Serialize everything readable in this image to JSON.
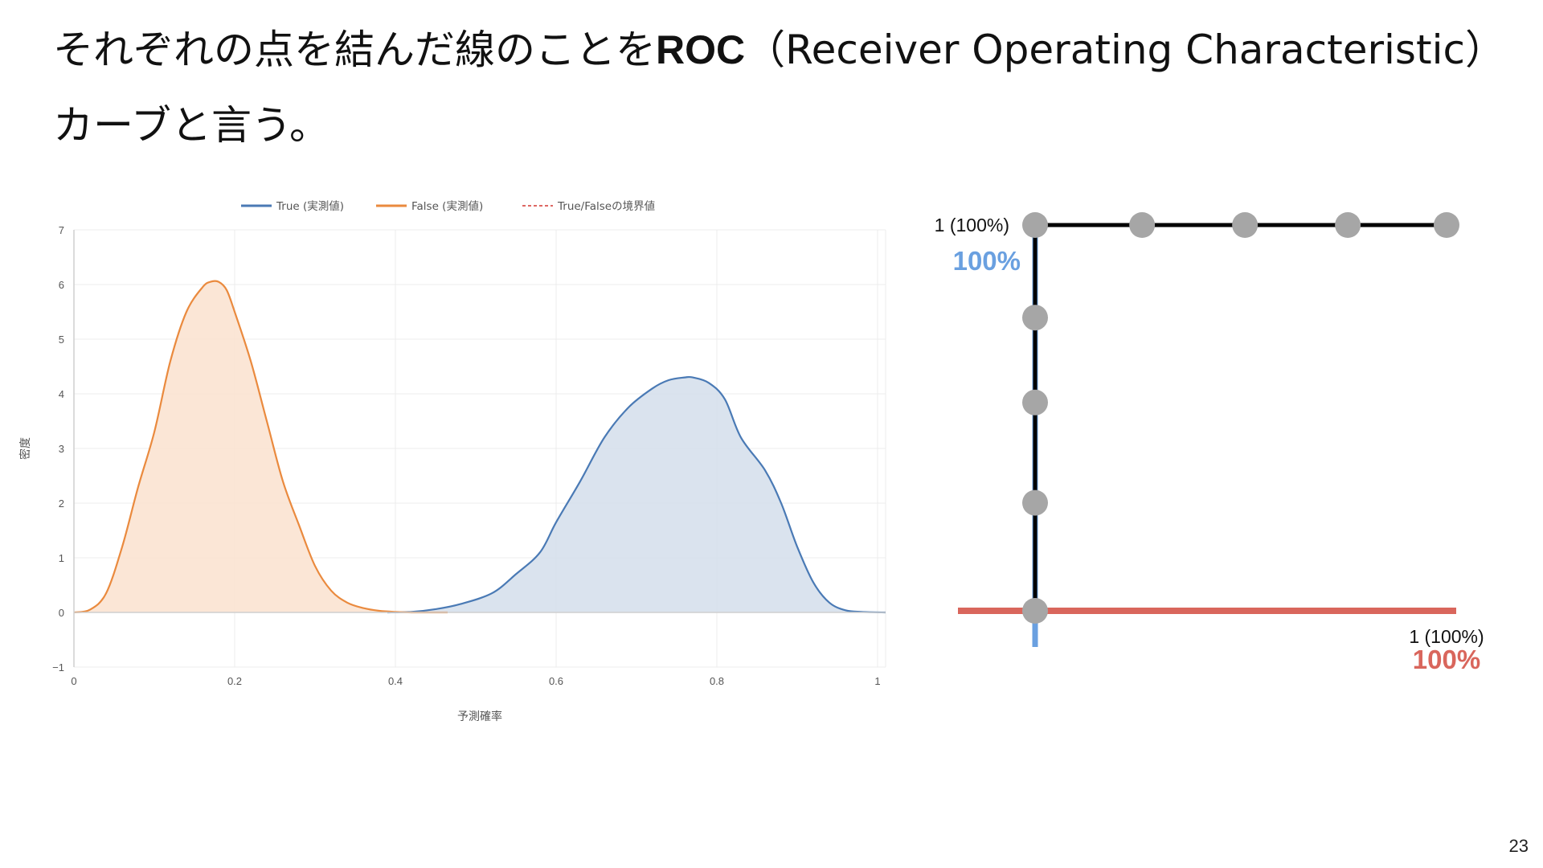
{
  "slide": {
    "title_line1_prefix": "それぞれの点を結んだ線のことを",
    "title_line1_bold": "ROC",
    "title_line1_suffix": "（Receiver Operating Characteristic）",
    "title_line2": "カーブと言う。",
    "page_number": "23"
  },
  "colors": {
    "true_series": "#4a7ab5",
    "true_fill": "#d6e0ec",
    "false_series": "#ea8a3e",
    "false_fill": "#fbe3d1",
    "boundary": "#d9534f",
    "roc_line": "#000000",
    "roc_point": "#a6a6a6",
    "tpr_axis": "#6aa0e0",
    "fpr_axis": "#d9665c"
  },
  "chart_data": [
    {
      "type": "area",
      "legend": {
        "placement": "top-center",
        "items": [
          "True (実測値)",
          "False (実測値)",
          "True/Falseの境界値"
        ]
      },
      "xlabel": "予測確率",
      "ylabel": "密度",
      "xlim": [
        0,
        1.01
      ],
      "ylim": [
        -1,
        7
      ],
      "x_ticks": [
        "0",
        "0.2",
        "0.4",
        "0.6",
        "0.8",
        "1"
      ],
      "y_ticks": [
        "−1",
        "0",
        "1",
        "2",
        "3",
        "4",
        "5",
        "6",
        "7"
      ],
      "grid": true,
      "series": [
        {
          "name": "True (実測値)",
          "x": [
            0.39,
            0.42,
            0.45,
            0.48,
            0.52,
            0.55,
            0.58,
            0.6,
            0.63,
            0.66,
            0.69,
            0.72,
            0.74,
            0.76,
            0.77,
            0.79,
            0.81,
            0.83,
            0.86,
            0.88,
            0.9,
            0.92,
            0.94,
            0.96,
            0.98,
            1.01
          ],
          "y": [
            0.0,
            0.01,
            0.06,
            0.15,
            0.35,
            0.7,
            1.1,
            1.65,
            2.4,
            3.2,
            3.75,
            4.1,
            4.25,
            4.3,
            4.3,
            4.2,
            3.9,
            3.2,
            2.6,
            2.0,
            1.2,
            0.55,
            0.18,
            0.04,
            0.01,
            0.0
          ]
        },
        {
          "name": "False (実測値)",
          "x": [
            0.0,
            0.02,
            0.04,
            0.06,
            0.08,
            0.1,
            0.12,
            0.14,
            0.16,
            0.17,
            0.18,
            0.19,
            0.2,
            0.22,
            0.24,
            0.26,
            0.28,
            0.3,
            0.32,
            0.34,
            0.36,
            0.38,
            0.4,
            0.42,
            0.44,
            0.465
          ],
          "y": [
            0.0,
            0.05,
            0.35,
            1.2,
            2.3,
            3.3,
            4.6,
            5.5,
            5.95,
            6.05,
            6.05,
            5.9,
            5.5,
            4.6,
            3.5,
            2.4,
            1.6,
            0.85,
            0.4,
            0.18,
            0.08,
            0.03,
            0.01,
            0.0,
            0.0,
            0.0
          ]
        }
      ]
    },
    {
      "type": "scatter",
      "x_end_label": "1 (100%)",
      "x_axis_caption": "100%",
      "y_end_label": "1 (100%)",
      "y_axis_caption": "100%",
      "xlim": [
        0,
        1
      ],
      "ylim": [
        0,
        1
      ],
      "points": [
        {
          "x": 0,
          "y": 0
        },
        {
          "x": 0,
          "y": 0.28
        },
        {
          "x": 0,
          "y": 0.54
        },
        {
          "x": 0,
          "y": 0.76
        },
        {
          "x": 0,
          "y": 1
        },
        {
          "x": 0.26,
          "y": 1
        },
        {
          "x": 0.51,
          "y": 1
        },
        {
          "x": 0.76,
          "y": 1
        },
        {
          "x": 1,
          "y": 1
        }
      ]
    }
  ]
}
